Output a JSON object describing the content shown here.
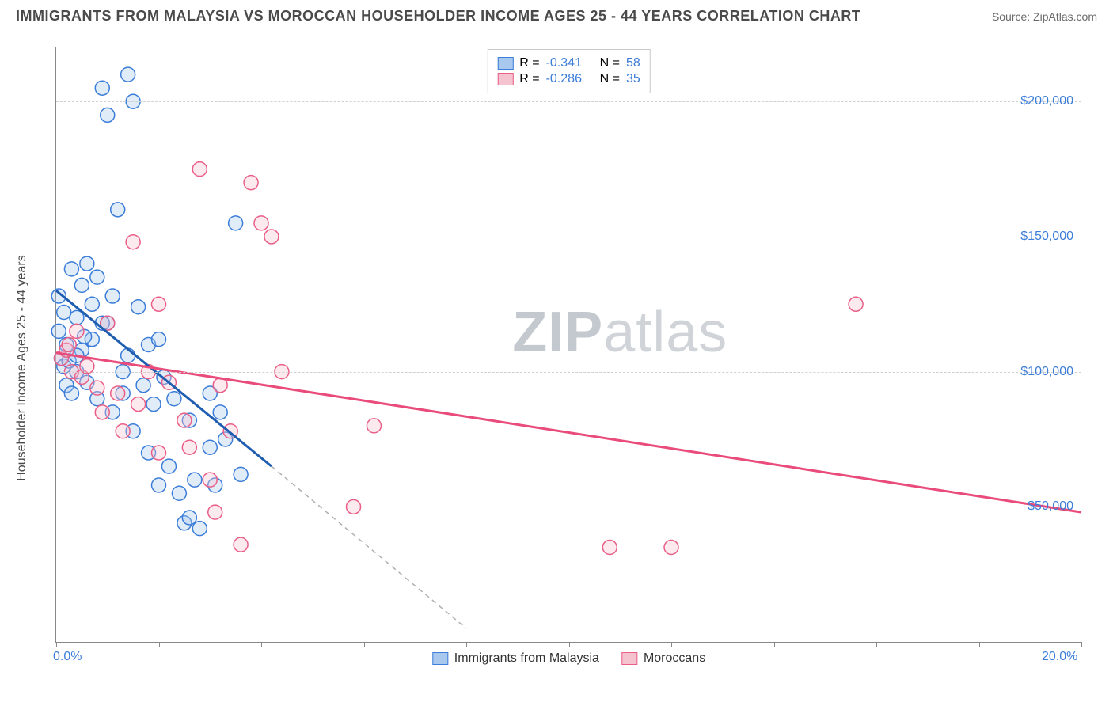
{
  "title": "IMMIGRANTS FROM MALAYSIA VS MOROCCAN HOUSEHOLDER INCOME AGES 25 - 44 YEARS CORRELATION CHART",
  "source": "Source: ZipAtlas.com",
  "watermark": {
    "bold": "ZIP",
    "light": "atlas"
  },
  "y_axis_label": "Householder Income Ages 25 - 44 years",
  "chart": {
    "type": "scatter",
    "xlim": [
      0,
      20
    ],
    "ylim": [
      0,
      220000
    ],
    "x_unit": "%",
    "y_unit": "$",
    "x_ticks": [
      0,
      2,
      4,
      6,
      8,
      10,
      12,
      14,
      16,
      18,
      20
    ],
    "x_tick_labels": {
      "0": "0.0%",
      "20": "20.0%"
    },
    "y_ticks": [
      50000,
      100000,
      150000,
      200000
    ],
    "y_tick_labels": {
      "50000": "$50,000",
      "100000": "$100,000",
      "150000": "$150,000",
      "200000": "$200,000"
    },
    "grid_color": "#d0d0d0",
    "background_color": "#ffffff",
    "axis_color": "#888888",
    "marker_radius": 9,
    "marker_stroke_width": 1.5,
    "marker_fill_opacity": 0.35,
    "trend_line_width": 3,
    "trend_dashed_color": "#b0b0b0",
    "series": [
      {
        "label": "Immigrants from Malaysia",
        "color_stroke": "#3b7dd8",
        "color_fill": "#a8c8ee",
        "trend_color": "#1f5db0",
        "r": -0.341,
        "n": 58,
        "trend": {
          "x1": 0,
          "y1": 130000,
          "x2": 4.2,
          "y2": 65000,
          "x_ext": 8.0,
          "y_ext": 5000
        },
        "points": [
          [
            0.05,
            128000
          ],
          [
            0.1,
            105000
          ],
          [
            0.15,
            102000
          ],
          [
            0.2,
            110000
          ],
          [
            0.2,
            95000
          ],
          [
            0.3,
            138000
          ],
          [
            0.3,
            92000
          ],
          [
            0.4,
            120000
          ],
          [
            0.4,
            100000
          ],
          [
            0.5,
            132000
          ],
          [
            0.5,
            108000
          ],
          [
            0.6,
            140000
          ],
          [
            0.6,
            96000
          ],
          [
            0.7,
            112000
          ],
          [
            0.8,
            135000
          ],
          [
            0.8,
            90000
          ],
          [
            0.9,
            205000
          ],
          [
            1.0,
            195000
          ],
          [
            1.0,
            118000
          ],
          [
            1.1,
            128000
          ],
          [
            1.1,
            85000
          ],
          [
            1.2,
            160000
          ],
          [
            1.3,
            100000
          ],
          [
            1.3,
            92000
          ],
          [
            1.4,
            210000
          ],
          [
            1.4,
            106000
          ],
          [
            1.5,
            200000
          ],
          [
            1.5,
            78000
          ],
          [
            1.6,
            124000
          ],
          [
            1.7,
            95000
          ],
          [
            1.8,
            110000
          ],
          [
            1.8,
            70000
          ],
          [
            1.9,
            88000
          ],
          [
            2.0,
            112000
          ],
          [
            2.0,
            58000
          ],
          [
            2.1,
            98000
          ],
          [
            2.2,
            65000
          ],
          [
            2.3,
            90000
          ],
          [
            2.4,
            55000
          ],
          [
            2.5,
            44000
          ],
          [
            2.6,
            46000
          ],
          [
            2.6,
            82000
          ],
          [
            2.7,
            60000
          ],
          [
            2.8,
            42000
          ],
          [
            3.0,
            92000
          ],
          [
            3.0,
            72000
          ],
          [
            3.1,
            58000
          ],
          [
            3.2,
            85000
          ],
          [
            3.3,
            75000
          ],
          [
            3.5,
            155000
          ],
          [
            3.6,
            62000
          ],
          [
            0.05,
            115000
          ],
          [
            0.15,
            122000
          ],
          [
            0.25,
            104000
          ],
          [
            0.4,
            106000
          ],
          [
            0.55,
            113000
          ],
          [
            0.7,
            125000
          ],
          [
            0.9,
            118000
          ]
        ]
      },
      {
        "label": "Moroccans",
        "color_stroke": "#e95f88",
        "color_fill": "#f5c2d0",
        "trend_color": "#e94b7a",
        "r": -0.286,
        "n": 35,
        "trend": {
          "x1": 0,
          "y1": 107000,
          "x2": 20,
          "y2": 48000
        },
        "points": [
          [
            0.1,
            105000
          ],
          [
            0.2,
            108000
          ],
          [
            0.3,
            100000
          ],
          [
            0.4,
            115000
          ],
          [
            0.5,
            98000
          ],
          [
            0.6,
            102000
          ],
          [
            0.8,
            94000
          ],
          [
            0.9,
            85000
          ],
          [
            1.0,
            118000
          ],
          [
            1.2,
            92000
          ],
          [
            1.3,
            78000
          ],
          [
            1.5,
            148000
          ],
          [
            1.6,
            88000
          ],
          [
            1.8,
            100000
          ],
          [
            2.0,
            125000
          ],
          [
            2.0,
            70000
          ],
          [
            2.2,
            96000
          ],
          [
            2.5,
            82000
          ],
          [
            2.6,
            72000
          ],
          [
            2.8,
            175000
          ],
          [
            3.0,
            60000
          ],
          [
            3.1,
            48000
          ],
          [
            3.2,
            95000
          ],
          [
            3.4,
            78000
          ],
          [
            3.6,
            36000
          ],
          [
            3.8,
            170000
          ],
          [
            4.0,
            155000
          ],
          [
            4.2,
            150000
          ],
          [
            4.4,
            100000
          ],
          [
            5.8,
            50000
          ],
          [
            6.2,
            80000
          ],
          [
            10.8,
            35000
          ],
          [
            12.0,
            35000
          ],
          [
            15.6,
            125000
          ],
          [
            0.25,
            110000
          ]
        ]
      }
    ]
  },
  "legend_top": {
    "r_label": "R =",
    "n_label": "N =",
    "text_color": "#333333",
    "value_color": "#3b7dd8"
  },
  "legend_bottom_labels": [
    "Immigrants from Malaysia",
    "Moroccans"
  ]
}
